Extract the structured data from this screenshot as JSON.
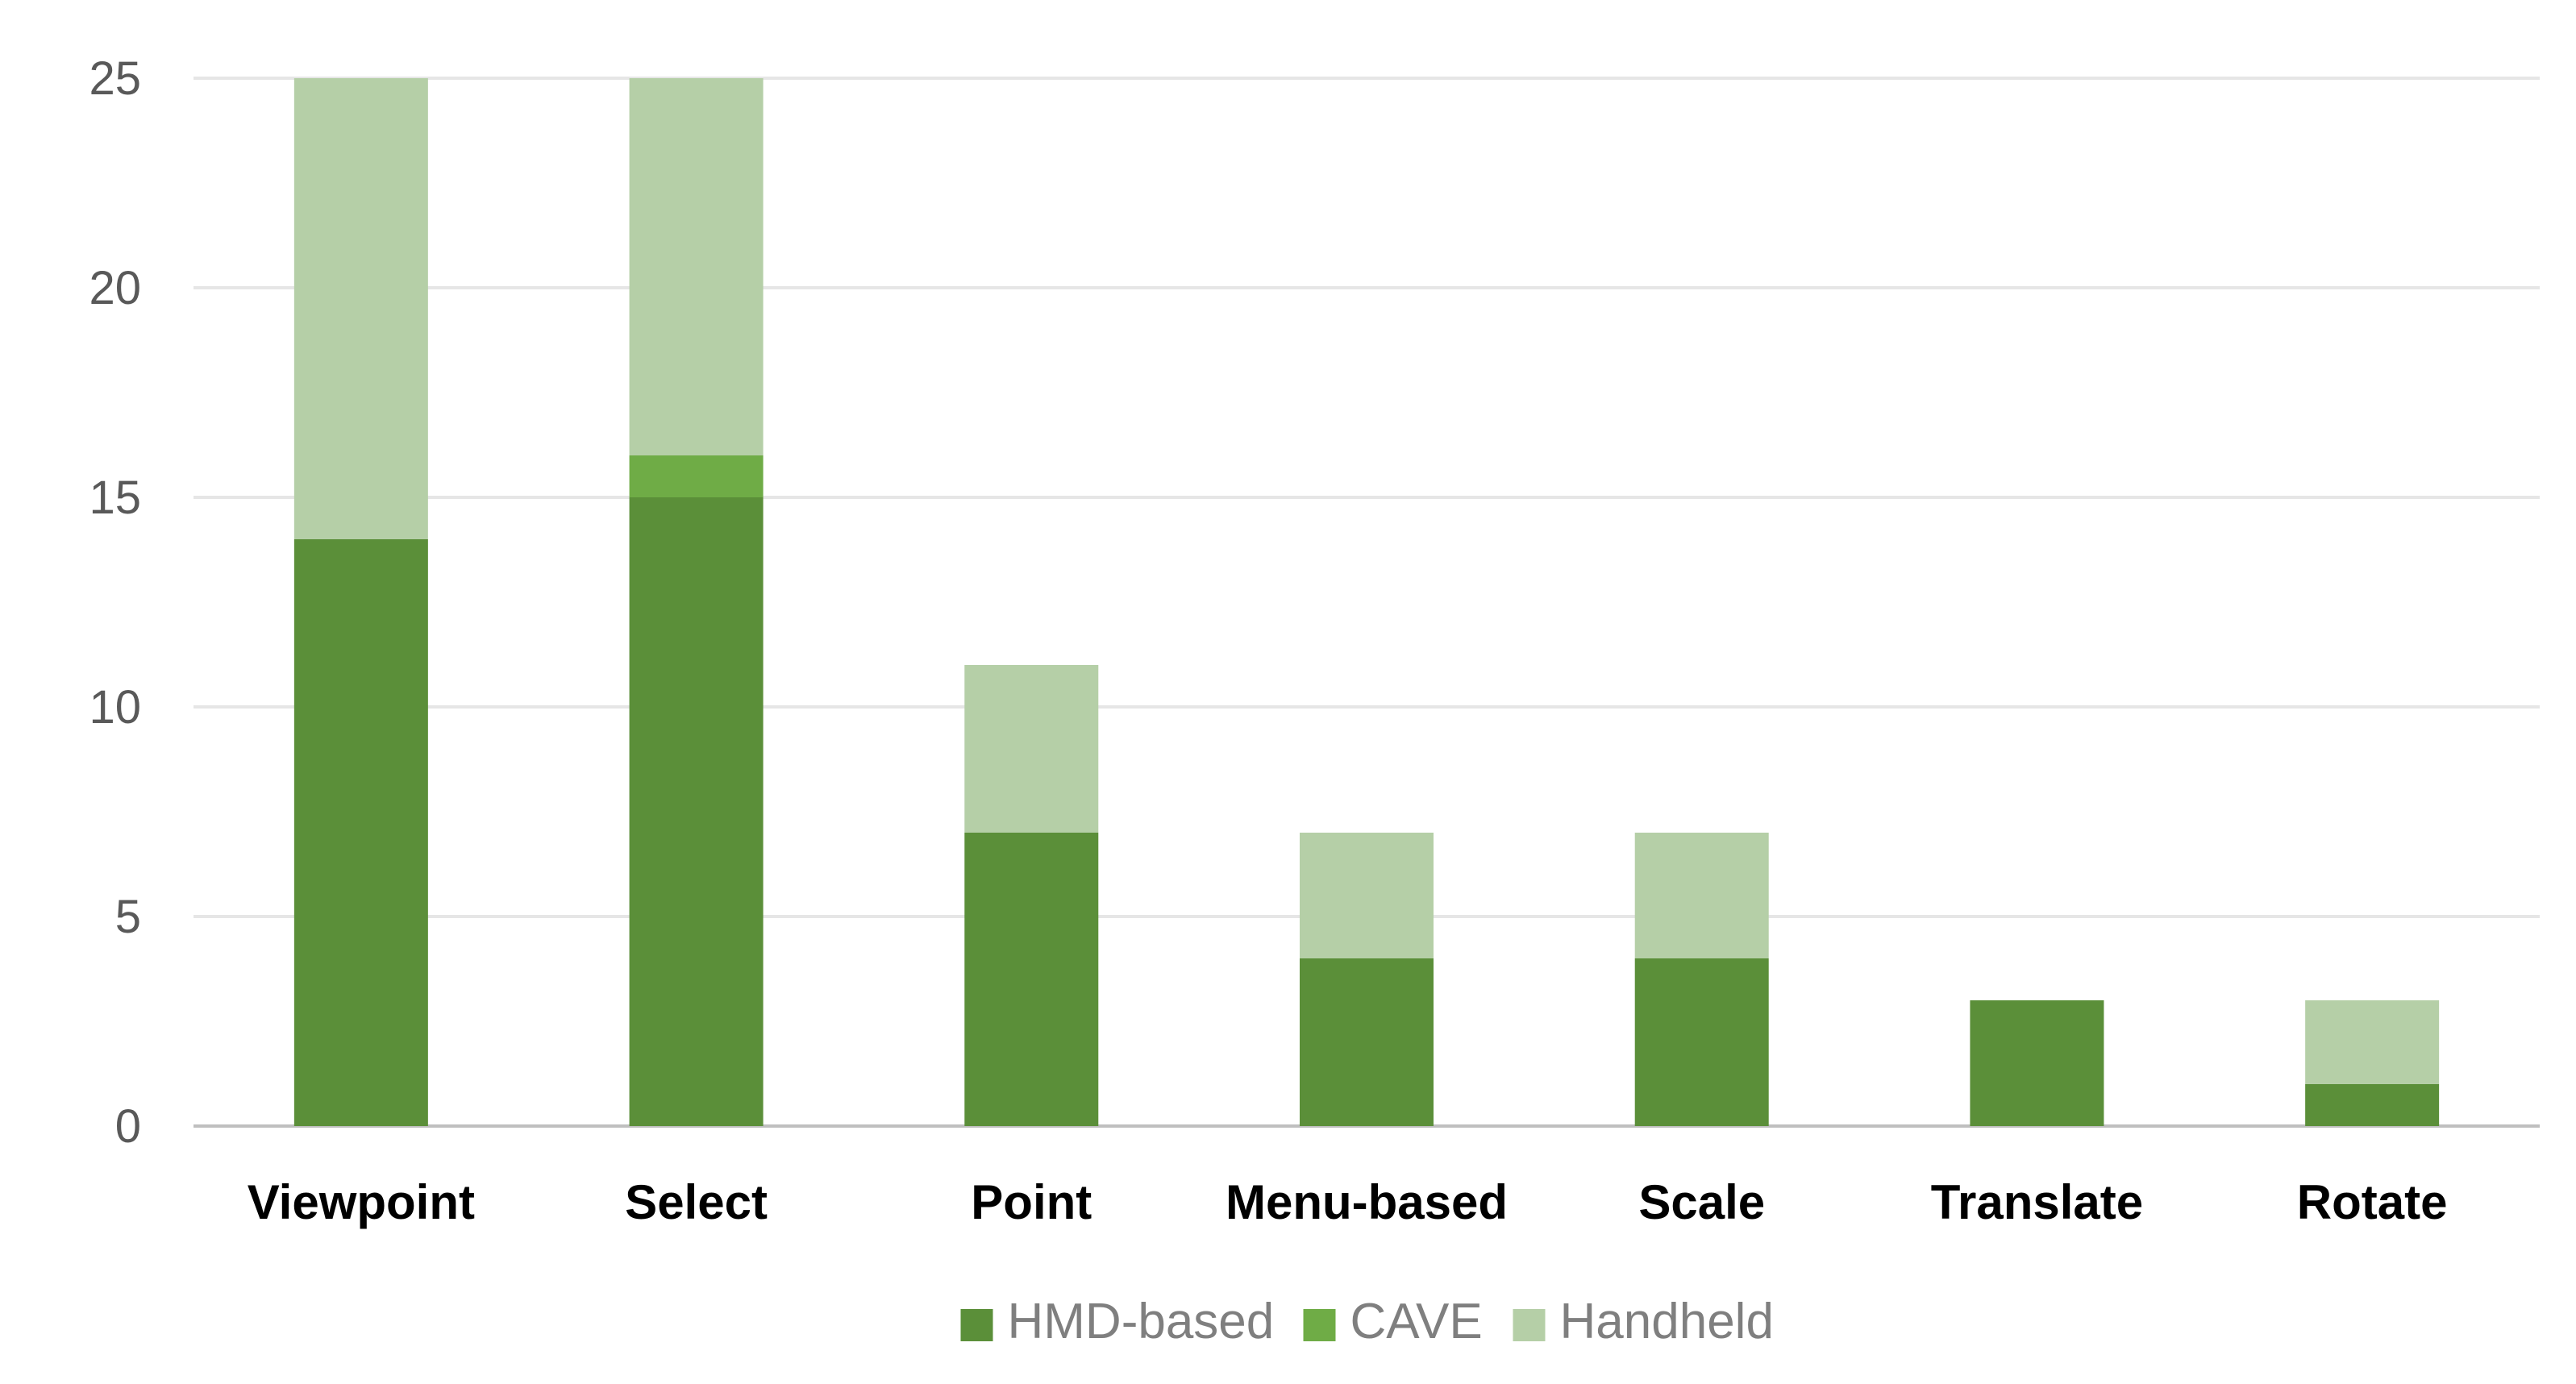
{
  "chart_data": {
    "type": "bar",
    "stacked": true,
    "categories": [
      "Viewpoint",
      "Select",
      "Point",
      "Menu-based",
      "Scale",
      "Translate",
      "Rotate"
    ],
    "series": [
      {
        "name": "HMD-based",
        "color": "#5b8f39",
        "values": [
          14,
          15,
          7,
          4,
          4,
          3,
          1
        ]
      },
      {
        "name": "CAVE",
        "color": "#6fac46",
        "values": [
          0,
          1,
          0,
          0,
          0,
          0,
          0
        ]
      },
      {
        "name": "Handheld",
        "color": "#b5cfa7",
        "values": [
          11,
          9,
          4,
          3,
          3,
          0,
          2
        ]
      }
    ],
    "yticks": [
      "0",
      "5",
      "10",
      "15",
      "20",
      "25"
    ],
    "ylim": [
      0,
      25
    ],
    "grid": true,
    "legend_position": "bottom-center"
  }
}
